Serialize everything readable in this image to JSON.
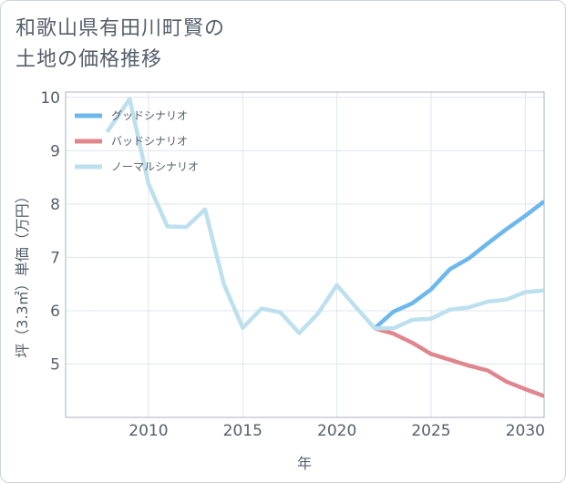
{
  "title_lines": [
    "和歌山県有田川町賢の",
    "土地の価格推移"
  ],
  "chart_data": {
    "type": "line",
    "title": "和歌山県有田川町賢の土地の価格推移",
    "xlabel": "年",
    "ylabel": "坪（3.3㎡）単価（万円）",
    "xlim": [
      2005.6,
      2031
    ],
    "ylim": [
      4.0,
      10.1
    ],
    "x_ticks": [
      2010,
      2015,
      2020,
      2025,
      2030
    ],
    "y_ticks": [
      5,
      6,
      7,
      8,
      9,
      10
    ],
    "grid": true,
    "legend_position": "top-left",
    "series": [
      {
        "name": "グッドシナリオ",
        "color": "#6cb8ec",
        "points": [
          [
            2022,
            5.67
          ],
          [
            2023,
            5.98
          ],
          [
            2024,
            6.14
          ],
          [
            2025,
            6.4
          ],
          [
            2026,
            6.78
          ],
          [
            2027,
            6.98
          ],
          [
            2028,
            7.26
          ],
          [
            2029,
            7.53
          ],
          [
            2030,
            7.78
          ],
          [
            2031,
            8.05
          ]
        ]
      },
      {
        "name": "バッドシナリオ",
        "color": "#e0868e",
        "points": [
          [
            2022,
            5.67
          ],
          [
            2023,
            5.57
          ],
          [
            2024,
            5.4
          ],
          [
            2025,
            5.19
          ],
          [
            2026,
            5.08
          ],
          [
            2027,
            4.97
          ],
          [
            2028,
            4.88
          ],
          [
            2029,
            4.67
          ],
          [
            2030,
            4.53
          ],
          [
            2031,
            4.4
          ]
        ]
      },
      {
        "name": "ノーマルシナリオ",
        "color": "#bde0ee",
        "points": [
          [
            2007.8,
            9.35
          ],
          [
            2009,
            9.97
          ],
          [
            2010,
            8.38
          ],
          [
            2011,
            7.58
          ],
          [
            2012,
            7.57
          ],
          [
            2013,
            7.9
          ],
          [
            2014,
            6.5
          ],
          [
            2015,
            5.68
          ],
          [
            2016,
            6.04
          ],
          [
            2017,
            5.97
          ],
          [
            2018,
            5.58
          ],
          [
            2019,
            5.95
          ],
          [
            2020,
            6.48
          ],
          [
            2021,
            6.07
          ],
          [
            2022,
            5.67
          ],
          [
            2023,
            5.67
          ],
          [
            2024,
            5.83
          ],
          [
            2025,
            5.85
          ],
          [
            2026,
            6.02
          ],
          [
            2027,
            6.06
          ],
          [
            2028,
            6.17
          ],
          [
            2029,
            6.21
          ],
          [
            2030,
            6.35
          ],
          [
            2031,
            6.38
          ]
        ]
      }
    ]
  }
}
